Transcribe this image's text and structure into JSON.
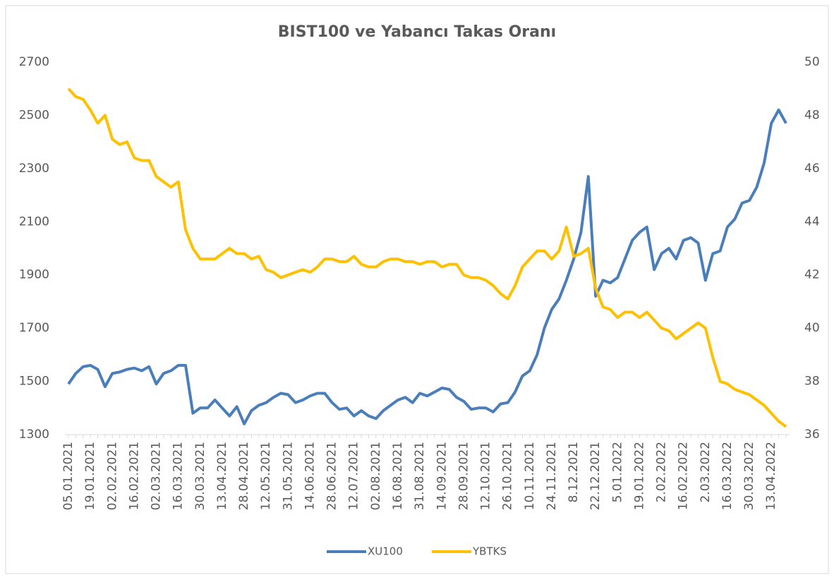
{
  "chart_data": {
    "type": "line",
    "title": "BIST100 ve Yabancı Takas Oranı",
    "categories": [
      "05.01.2021",
      null,
      null,
      "19.01.2021",
      null,
      null,
      "02.02.2021",
      null,
      null,
      "16.02.2021",
      null,
      null,
      "02.03.2021",
      null,
      null,
      "16.03.2021",
      null,
      null,
      "30.03.2021",
      null,
      null,
      "13.04.2021",
      null,
      null,
      "28.04.2021",
      null,
      null,
      "12.05.2021",
      null,
      null,
      "31.05.2021",
      null,
      null,
      "14.06.2021",
      null,
      null,
      "28.06.2021",
      null,
      null,
      "12.07.2021",
      null,
      null,
      "02.08.2021",
      null,
      null,
      "16.08.2021",
      null,
      null,
      "31.08.2021",
      null,
      null,
      "14.09.2021",
      null,
      null,
      "28.09.2021",
      null,
      null,
      "12.10.2021",
      null,
      null,
      "26.10.2021",
      null,
      null,
      "10.11.2021",
      null,
      null,
      "24.11.2021",
      null,
      null,
      "8.12.2021",
      null,
      null,
      "22.12.2021",
      null,
      null,
      "5.01.2022",
      null,
      null,
      "19.01.2022",
      null,
      null,
      "2.02.2022",
      null,
      null,
      "16.02.2022",
      null,
      null,
      "2.03.2022",
      null,
      null,
      "16.03.2022",
      null,
      null,
      "30.03.2022",
      null,
      null,
      "13.04.2022",
      null,
      null
    ],
    "series": [
      {
        "name": "XU100",
        "color": "#4a7ebb",
        "axis": "y",
        "values": [
          1490,
          1530,
          1555,
          1560,
          1545,
          1480,
          1530,
          1535,
          1545,
          1550,
          1540,
          1555,
          1490,
          1530,
          1540,
          1560,
          1560,
          1380,
          1400,
          1400,
          1430,
          1400,
          1370,
          1405,
          1340,
          1390,
          1410,
          1420,
          1440,
          1455,
          1450,
          1420,
          1430,
          1445,
          1455,
          1455,
          1420,
          1395,
          1400,
          1370,
          1390,
          1370,
          1360,
          1390,
          1410,
          1430,
          1440,
          1420,
          1455,
          1445,
          1460,
          1475,
          1470,
          1440,
          1425,
          1395,
          1400,
          1400,
          1385,
          1415,
          1420,
          1460,
          1520,
          1540,
          1600,
          1700,
          1770,
          1810,
          1880,
          1960,
          2060,
          2270,
          1820,
          1880,
          1870,
          1890,
          1960,
          2030,
          2060,
          2080,
          1920,
          1980,
          2000,
          1960,
          2030,
          2040,
          2020,
          1880,
          1980,
          1990,
          2080,
          2110,
          2170,
          2180,
          2230,
          2320,
          2470,
          2520,
          2470
        ]
      },
      {
        "name": "YBTKS",
        "color": "#ffc000",
        "axis": "y2",
        "values": [
          49,
          48.7,
          48.6,
          48.2,
          47.7,
          48.0,
          47.1,
          46.9,
          47.0,
          46.4,
          46.3,
          46.3,
          45.7,
          45.5,
          45.3,
          45.5,
          43.7,
          43.0,
          42.6,
          42.6,
          42.6,
          42.8,
          43.0,
          42.8,
          42.8,
          42.6,
          42.7,
          42.2,
          42.1,
          41.9,
          42.0,
          42.1,
          42.2,
          42.1,
          42.3,
          42.6,
          42.6,
          42.5,
          42.5,
          42.7,
          42.4,
          42.3,
          42.3,
          42.5,
          42.6,
          42.6,
          42.5,
          42.5,
          42.4,
          42.5,
          42.5,
          42.3,
          42.4,
          42.4,
          42.0,
          41.9,
          41.9,
          41.8,
          41.6,
          41.3,
          41.1,
          41.6,
          42.3,
          42.6,
          42.9,
          42.9,
          42.6,
          42.9,
          43.8,
          42.7,
          42.8,
          43.0,
          41.5,
          40.8,
          40.7,
          40.4,
          40.6,
          40.6,
          40.4,
          40.6,
          40.3,
          40.0,
          39.9,
          39.6,
          39.8,
          40.0,
          40.2,
          40.0,
          38.9,
          38.0,
          37.9,
          37.7,
          37.6,
          37.5,
          37.3,
          37.1,
          36.8,
          36.5,
          36.3
        ]
      }
    ],
    "ylim": [
      1300,
      2700
    ],
    "yticks": [
      1300,
      1500,
      1700,
      1900,
      2100,
      2300,
      2500,
      2700
    ],
    "y2lim": [
      36,
      50
    ],
    "y2ticks": [
      36,
      38,
      40,
      42,
      44,
      46,
      48,
      50
    ]
  }
}
